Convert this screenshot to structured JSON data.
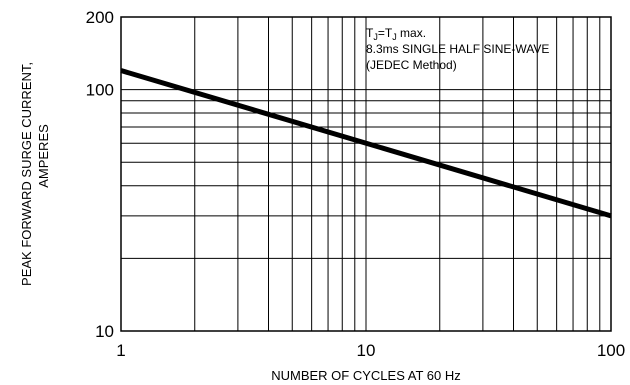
{
  "chart_data": {
    "type": "line",
    "xlabel": "NUMBER OF CYCLES AT 60 Hz",
    "ylabel_lines": [
      "PEAK FORWARD SURGE CURRENT,",
      "AMPERES"
    ],
    "xscale": "log",
    "yscale": "log",
    "xlim": [
      1,
      100
    ],
    "ylim": [
      10,
      200
    ],
    "x_ticks": [
      {
        "value": 1,
        "label": "1"
      },
      {
        "value": 10,
        "label": "10"
      },
      {
        "value": 100,
        "label": "100"
      }
    ],
    "y_ticks": [
      {
        "value": 10,
        "label": "10"
      },
      {
        "value": 100,
        "label": "100"
      },
      {
        "value": 200,
        "label": "200"
      }
    ],
    "grid": true,
    "annotation_lines": [
      {
        "parts": [
          {
            "t": "T"
          },
          {
            "t": "J",
            "sub": true
          },
          {
            "t": "=T"
          },
          {
            "t": "J",
            "sub": true
          },
          {
            "t": " max."
          }
        ]
      },
      {
        "parts": [
          {
            "t": "8.3ms SINGLE HALF SINE-WAVE"
          }
        ]
      },
      {
        "parts": [
          {
            "t": "(JEDEC Method)"
          }
        ]
      }
    ],
    "series": [
      {
        "x": [
          1,
          100
        ],
        "y": [
          120,
          30
        ]
      }
    ]
  }
}
